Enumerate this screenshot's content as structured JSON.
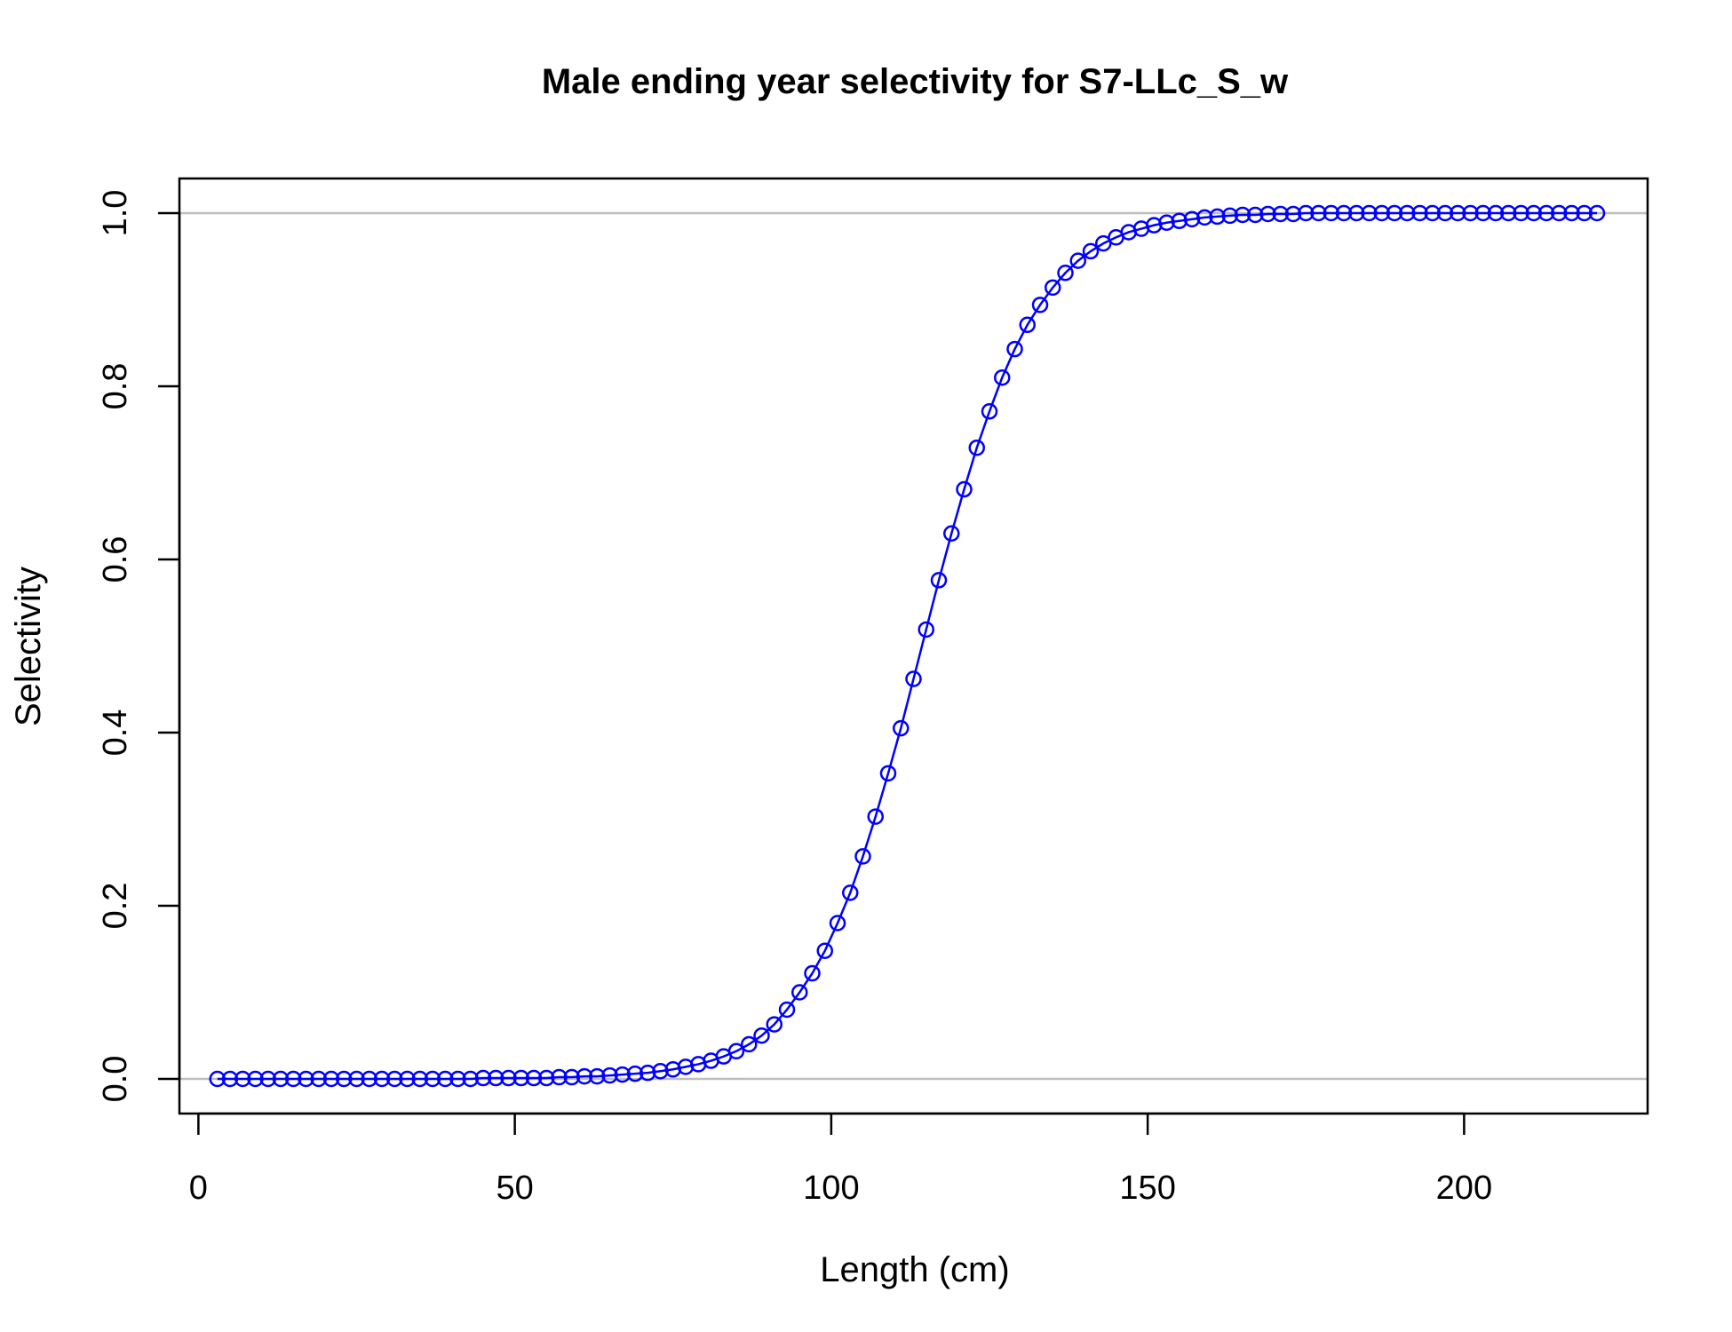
{
  "chart_data": {
    "type": "line",
    "title": "Male ending year selectivity for S7-LLc_S_w",
    "xlabel": "Length (cm)",
    "ylabel": "Selectivity",
    "xlim": [
      -3,
      229
    ],
    "ylim": [
      -0.04,
      1.04
    ],
    "xticks": [
      0,
      50,
      100,
      150,
      200
    ],
    "yticks": [
      0.0,
      0.2,
      0.4,
      0.6,
      0.8,
      1.0
    ],
    "xtick_labels": [
      "0",
      "50",
      "100",
      "150",
      "200"
    ],
    "ytick_labels": [
      "0.0",
      "0.2",
      "0.4",
      "0.6",
      "0.8",
      "1.0"
    ],
    "reference_lines_y": [
      0,
      1
    ],
    "reference_line_color": "#bebebe",
    "series_color": "#0000ff",
    "marker": "open-circle",
    "grid": false,
    "legend": "none",
    "series": [
      {
        "x": [
          3,
          5,
          7,
          9,
          11,
          13,
          15,
          17,
          19,
          21,
          23,
          25,
          27,
          29,
          31,
          33,
          35,
          37,
          39,
          41,
          43,
          45,
          47,
          49,
          51,
          53,
          55,
          57,
          59,
          61,
          63,
          65,
          67,
          69,
          71,
          73,
          75,
          77,
          79,
          81,
          83,
          85,
          87,
          89,
          91,
          93,
          95,
          97,
          99,
          101,
          103,
          105,
          107,
          109,
          111,
          113,
          115,
          117,
          119,
          121,
          123,
          125,
          127,
          129,
          131,
          133,
          135,
          137,
          139,
          141,
          143,
          145,
          147,
          149,
          151,
          153,
          155,
          157,
          159,
          161,
          163,
          165,
          167,
          169,
          171,
          173,
          175,
          177,
          179,
          181,
          183,
          185,
          187,
          189,
          191,
          193,
          195,
          197,
          199,
          201,
          203,
          205,
          207,
          209,
          211,
          213,
          215,
          217,
          219,
          221
        ],
        "y": [
          0.0,
          0.0,
          0.0,
          0.0,
          0.0,
          0.0,
          0.0,
          0.0,
          0.0,
          0.0,
          0.0,
          0.0,
          0.0,
          0.0,
          0.0,
          0.0,
          0.0,
          0.0,
          0.0,
          0.0,
          0.0,
          0.001,
          0.001,
          0.001,
          0.001,
          0.001,
          0.001,
          0.002,
          0.002,
          0.003,
          0.003,
          0.004,
          0.005,
          0.006,
          0.007,
          0.009,
          0.011,
          0.014,
          0.017,
          0.021,
          0.026,
          0.032,
          0.04,
          0.05,
          0.063,
          0.08,
          0.1,
          0.122,
          0.148,
          0.18,
          0.215,
          0.257,
          0.303,
          0.353,
          0.405,
          0.462,
          0.519,
          0.576,
          0.63,
          0.681,
          0.729,
          0.771,
          0.81,
          0.843,
          0.871,
          0.894,
          0.914,
          0.931,
          0.945,
          0.956,
          0.965,
          0.972,
          0.978,
          0.982,
          0.986,
          0.989,
          0.991,
          0.993,
          0.995,
          0.996,
          0.997,
          0.998,
          0.998,
          0.999,
          0.999,
          0.999,
          1.0,
          1.0,
          1.0,
          1.0,
          1.0,
          1.0,
          1.0,
          1.0,
          1.0,
          1.0,
          1.0,
          1.0,
          1.0,
          1.0,
          1.0,
          1.0,
          1.0,
          1.0,
          1.0,
          1.0,
          1.0,
          1.0,
          1.0,
          1.0
        ]
      }
    ]
  }
}
